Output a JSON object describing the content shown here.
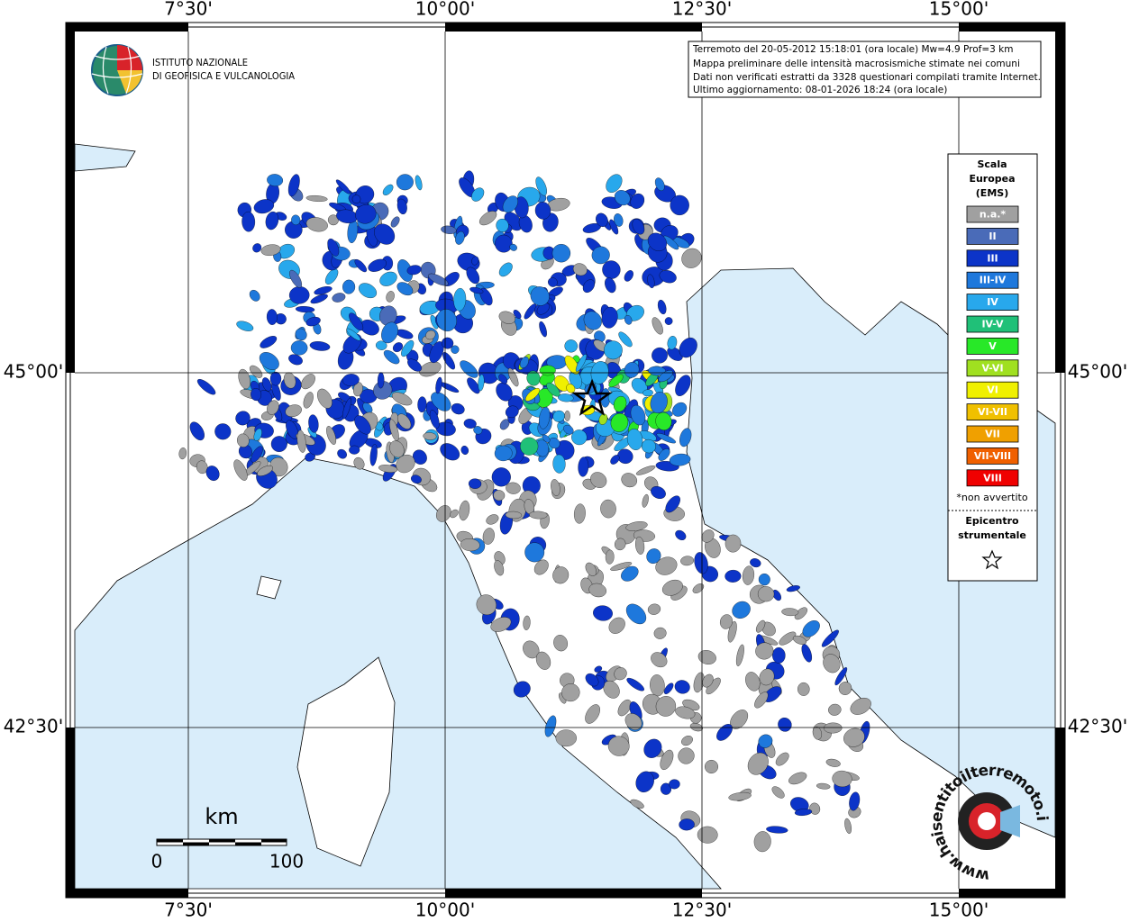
{
  "logo": {
    "line1": "ISTITUTO NAZIONALE",
    "line2": "DI GEOFISICA E VULCANOLOGIA"
  },
  "info": [
    "Terremoto del 20-05-2012 15:18:01 (ora locale) Mw=4.9 Prof=3 km",
    "Mappa preliminare delle intensità macrosismiche stimate nei comuni",
    "Dati non verificati estratti da 3328 questionari compilati tramite Internet.",
    "Ultimo aggiornamento: 08-01-2026 18:24 (ora locale)"
  ],
  "graticule": {
    "longitudes": [
      "7°30'",
      "10°00'",
      "12°30'",
      "15°00'"
    ],
    "latitudes": [
      "45°00'",
      "42°30'"
    ]
  },
  "legend": {
    "title": [
      "Scala",
      "Europea",
      "(EMS)"
    ],
    "classes": [
      {
        "label": "n.a.*",
        "color": "#a0a0a0"
      },
      {
        "label": "II",
        "color": "#4a6bb8"
      },
      {
        "label": "III",
        "color": "#0c34c8"
      },
      {
        "label": "III-IV",
        "color": "#1e78dc"
      },
      {
        "label": "IV",
        "color": "#28a8ec"
      },
      {
        "label": "IV-V",
        "color": "#20c078"
      },
      {
        "label": "V",
        "color": "#28e828"
      },
      {
        "label": "V-VI",
        "color": "#a0e020"
      },
      {
        "label": "VI",
        "color": "#f0f000"
      },
      {
        "label": "VI-VII",
        "color": "#f0c000"
      },
      {
        "label": "VII",
        "color": "#f0a000"
      },
      {
        "label": "VII-VIII",
        "color": "#f06000"
      },
      {
        "label": "VIII",
        "color": "#f00000"
      }
    ],
    "note": "*non avvertito",
    "epicenter": [
      "Epicentro",
      "strumentale"
    ]
  },
  "scale_bar": {
    "unit": "km",
    "start": "0",
    "end": "100"
  },
  "watermark": "www.haisentitoilterremoto.it"
}
